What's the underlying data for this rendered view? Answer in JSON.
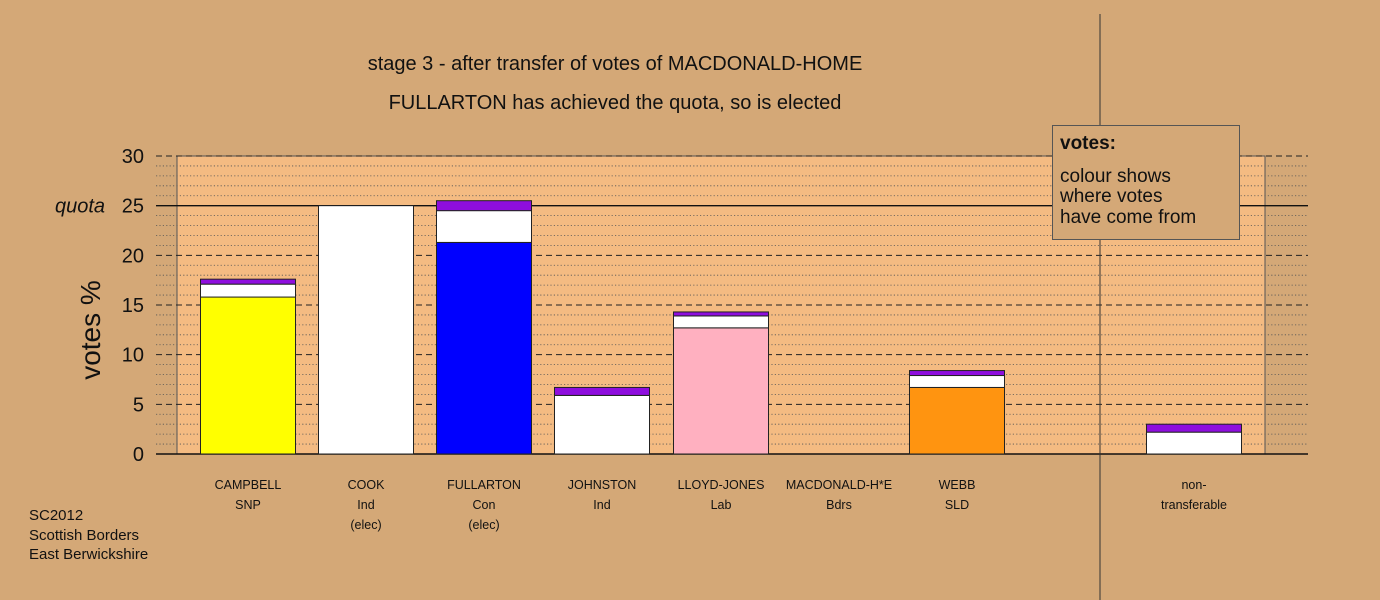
{
  "title": "stage 3 - after transfer of votes of MACDONALD-HOME",
  "subtitle": "FULLARTON has achieved the quota, so is elected",
  "legend": {
    "title": "votes:",
    "text": "colour shows\nwhere votes\nhave come from"
  },
  "footer": [
    "SC2012",
    "Scottish Borders",
    "East Berwickshire"
  ],
  "colors": {
    "background": "#d4a877",
    "plot_area": "#f4bb82",
    "transfer_previous": "#ffffff",
    "transfer_current": "#8e0ede",
    "SNP": "#ffff00",
    "Con": "#0000ff",
    "Lab": "#ffb0c0",
    "SLD": "#ff9410"
  },
  "chart_data": {
    "type": "bar",
    "stacked": true,
    "ylabel": "votes %",
    "ylim": [
      0,
      30
    ],
    "yticks": [
      0,
      5,
      10,
      15,
      20,
      25,
      30
    ],
    "quota": 25,
    "quota_label": "quota",
    "grid": true,
    "legend_position": "top-right",
    "categories": [
      {
        "name": "CAMPBELL",
        "party": "SNP",
        "status": ""
      },
      {
        "name": "COOK",
        "party": "Ind",
        "status": "(elec)"
      },
      {
        "name": "FULLARTON",
        "party": "Con",
        "status": "(elec)"
      },
      {
        "name": "JOHNSTON",
        "party": "Ind",
        "status": ""
      },
      {
        "name": "LLOYD-JONES",
        "party": "Lab",
        "status": ""
      },
      {
        "name": "MACDONALD-H*E",
        "party": "Bdrs",
        "status": ""
      },
      {
        "name": "WEBB",
        "party": "SLD",
        "status": ""
      },
      {
        "name": "non-",
        "party": "transferable",
        "status": ""
      }
    ],
    "series": [
      {
        "color": "#ffff00",
        "values": [
          15.8,
          0,
          0,
          0,
          0,
          0,
          0,
          0
        ]
      },
      {
        "color": "#0000ff",
        "values": [
          0,
          0,
          21.3,
          0,
          0,
          0,
          0,
          0
        ]
      },
      {
        "color": "#ffb0c0",
        "values": [
          0,
          0,
          0,
          0,
          12.7,
          0,
          0,
          0
        ]
      },
      {
        "color": "#ff9410",
        "values": [
          0,
          0,
          0,
          0,
          0,
          0,
          6.7,
          0
        ]
      },
      {
        "color": "#ffffff",
        "values": [
          1.3,
          25.0,
          3.2,
          5.9,
          1.2,
          0,
          1.2,
          2.2
        ]
      },
      {
        "color": "#8e0ede",
        "values": [
          0.5,
          0,
          1.0,
          0.8,
          0.4,
          0,
          0.5,
          0.8
        ]
      }
    ]
  }
}
